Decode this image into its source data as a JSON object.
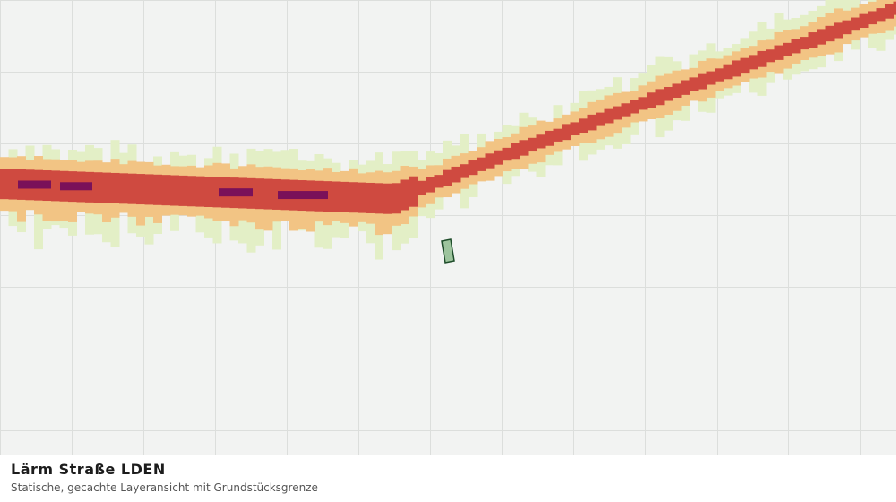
{
  "caption": {
    "title": "Lärm Straße LDEN",
    "subtitle": "Statische, gecachte Layeransicht mit Grundstücksgrenze"
  },
  "colors": {
    "background": "#f2f3f2",
    "grid": "#dcdedc",
    "noise_low": "#e3efc6",
    "noise_medium": "#f2c484",
    "noise_high": "#cf4a40",
    "noise_very_high": "#7a1159",
    "parcel_fill": "#9dc49d",
    "parcel_stroke": "#1f4d2b"
  },
  "map": {
    "layer": "noise-road-lden",
    "noise_classes": [
      "noise_low",
      "noise_medium",
      "noise_high",
      "noise_very_high"
    ],
    "parcel_visible": true
  }
}
